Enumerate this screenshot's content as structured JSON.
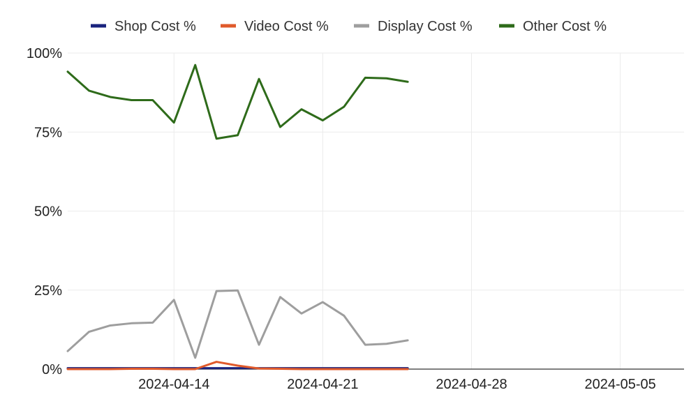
{
  "chart_data": {
    "type": "line",
    "x_type": "date",
    "x_ticks": [
      "2024-04-14",
      "2024-04-21",
      "2024-04-28",
      "2024-05-05"
    ],
    "y_ticks": [
      "0%",
      "25%",
      "50%",
      "75%",
      "100%"
    ],
    "xlim": [
      "2024-04-09",
      "2024-05-08"
    ],
    "ylim": [
      0,
      100
    ],
    "grid": true,
    "legend_position": "top",
    "x": [
      "2024-04-09",
      "2024-04-10",
      "2024-04-11",
      "2024-04-12",
      "2024-04-13",
      "2024-04-14",
      "2024-04-15",
      "2024-04-16",
      "2024-04-17",
      "2024-04-18",
      "2024-04-19",
      "2024-04-20",
      "2024-04-21",
      "2024-04-22",
      "2024-04-23",
      "2024-04-24",
      "2024-04-25"
    ],
    "series": [
      {
        "name": "Shop Cost %",
        "color": "#1a237e",
        "values": [
          0.3,
          0.3,
          0.3,
          0.3,
          0.3,
          0.3,
          0.3,
          0.3,
          0.3,
          0.3,
          0.3,
          0.3,
          0.3,
          0.3,
          0.3,
          0.3,
          0.3
        ]
      },
      {
        "name": "Video Cost %",
        "color": "#e05a2b",
        "values": [
          0,
          0,
          0,
          0.1,
          0.1,
          0,
          0,
          2.3,
          1.1,
          0.2,
          0.1,
          0,
          0,
          0,
          0,
          0,
          0
        ]
      },
      {
        "name": "Display Cost %",
        "color": "#9e9e9e",
        "values": [
          5.7,
          11.8,
          13.8,
          14.5,
          14.7,
          21.9,
          3.6,
          24.7,
          24.9,
          7.7,
          22.8,
          17.6,
          21.2,
          16.9,
          7.7,
          8,
          9.1
        ]
      },
      {
        "name": "Other Cost %",
        "color": "#2e6b1a",
        "values": [
          94.1,
          88.1,
          86.1,
          85.1,
          85.1,
          78,
          96.2,
          72.9,
          74,
          91.8,
          76.6,
          82.2,
          78.7,
          83,
          92.2,
          92,
          90.9
        ]
      }
    ]
  }
}
